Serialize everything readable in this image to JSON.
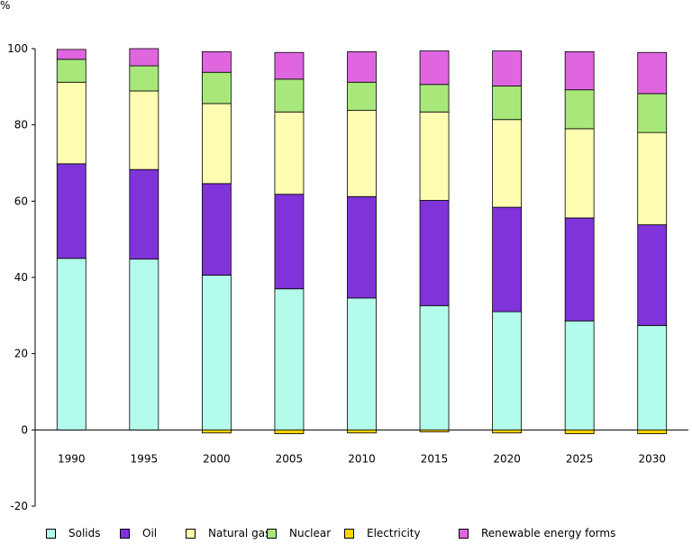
{
  "chart_data": {
    "type": "bar",
    "stacked": true,
    "categories": [
      "1990",
      "1995",
      "2000",
      "2005",
      "2010",
      "2015",
      "2020",
      "2025",
      "2030"
    ],
    "unit_label": "%",
    "ylim": [
      -20,
      100
    ],
    "yticks": [
      -20,
      0,
      20,
      40,
      60,
      80,
      100
    ],
    "grid": false,
    "legend_position": "bottom",
    "series": [
      {
        "name": "Solids",
        "color": "#b3fbea",
        "values": [
          45.0,
          44.8,
          40.6,
          37.0,
          34.6,
          32.6,
          31.0,
          28.6,
          27.4
        ]
      },
      {
        "name": "Oil",
        "color": "#8033d9",
        "values": [
          24.8,
          23.5,
          24.0,
          24.8,
          26.6,
          27.6,
          27.4,
          27.0,
          26.4
        ]
      },
      {
        "name": "Natural gas",
        "color": "#fefdb2",
        "values": [
          21.4,
          20.6,
          21.0,
          21.6,
          22.6,
          23.2,
          23.0,
          23.4,
          24.2
        ]
      },
      {
        "name": "Nuclear",
        "color": "#a8e87a",
        "values": [
          6.0,
          6.6,
          8.2,
          8.6,
          7.4,
          7.2,
          8.8,
          10.2,
          10.2
        ]
      },
      {
        "name": "Electricity",
        "color": "#ffd400",
        "values": [
          0.0,
          0.0,
          -0.8,
          -1.0,
          -0.8,
          -0.5,
          -0.8,
          -1.0,
          -1.0
        ]
      },
      {
        "name": "Renewable energy forms",
        "color": "#e066e0",
        "values": [
          2.6,
          4.5,
          5.4,
          7.0,
          8.0,
          8.8,
          9.2,
          10.0,
          10.8
        ]
      }
    ]
  }
}
